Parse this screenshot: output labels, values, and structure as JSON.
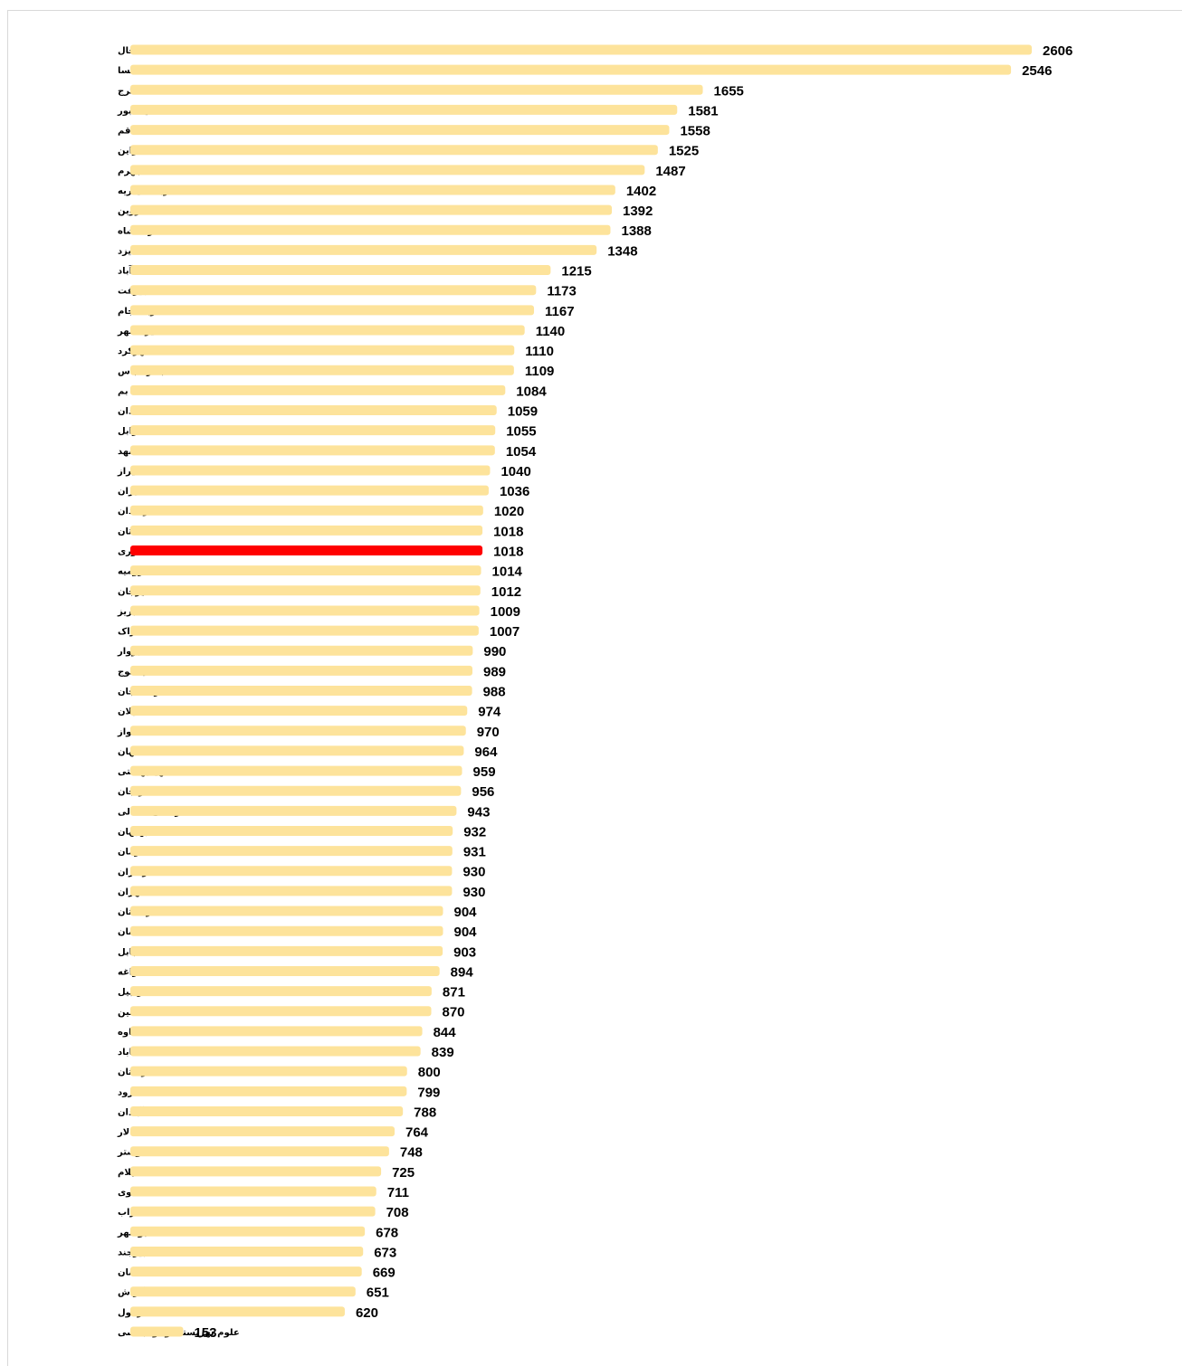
{
  "chart_data": {
    "type": "bar",
    "orientation": "horizontal",
    "categories": [
      "خلخال",
      "فسا",
      "کرج",
      "نیشابور",
      "قم",
      "اسفراین",
      "جهرم",
      "تربت حیدریه",
      "قزوین",
      "کرمانشاه",
      "یزد",
      "اسدآباد",
      "جیرفت",
      "تربت جام",
      "ایرانشهر",
      "شهرکرد",
      "بندر عباس",
      "بم",
      "همدان",
      "زابل",
      "مشهد",
      "شیراز",
      "ایران",
      "زاهدان",
      "گلستان",
      "کشوری",
      "ارومیه",
      "سیرجان",
      "تبریز",
      "اراک",
      "سبزوار",
      "یاسوج",
      "رفسنجان",
      "گیلان",
      "اهواز",
      "اصفهان",
      "شهیدبهشتی",
      "زنجان",
      "خراسان شمالی",
      "بهبهان",
      "کرمان",
      "مازندران",
      "تهران",
      "کردستان",
      "کاشان",
      "بابل",
      "مراغه",
      "اردبیل",
      "خمین",
      "ساوه",
      "گناباد",
      "لرستان",
      "شاهرود",
      "آبادان",
      "لار",
      "شوشتر",
      "ایلام",
      "خوی",
      "سراب",
      "بوشهر",
      "بیرجند",
      "سمنان",
      "گراش",
      "دزفول",
      "علوم بهزیستی و توانبخشی"
    ],
    "values": [
      2606,
      2546,
      1655,
      1581,
      1558,
      1525,
      1487,
      1402,
      1392,
      1388,
      1348,
      1215,
      1173,
      1167,
      1140,
      1110,
      1109,
      1084,
      1059,
      1055,
      1054,
      1040,
      1036,
      1020,
      1018,
      1018,
      1014,
      1012,
      1009,
      1007,
      990,
      989,
      988,
      974,
      970,
      964,
      959,
      956,
      943,
      932,
      931,
      930,
      930,
      904,
      904,
      903,
      894,
      871,
      870,
      844,
      839,
      800,
      799,
      788,
      764,
      748,
      725,
      711,
      708,
      678,
      673,
      669,
      651,
      620,
      153
    ],
    "colors": [
      "#fde39b",
      "#fde39b",
      "#fde39b",
      "#fde39b",
      "#fde39b",
      "#fde39b",
      "#fde39b",
      "#fde39b",
      "#fde39b",
      "#fde39b",
      "#fde39b",
      "#fde39b",
      "#fde39b",
      "#fde39b",
      "#fde39b",
      "#fde39b",
      "#fde39b",
      "#fde39b",
      "#fde39b",
      "#fde39b",
      "#fde39b",
      "#fde39b",
      "#fde39b",
      "#fde39b",
      "#fde39b",
      "#ff0000",
      "#fde39b",
      "#fde39b",
      "#fde39b",
      "#fde39b",
      "#fde39b",
      "#fde39b",
      "#fde39b",
      "#fde39b",
      "#fde39b",
      "#fde39b",
      "#fde39b",
      "#fde39b",
      "#fde39b",
      "#fde39b",
      "#fde39b",
      "#fde39b",
      "#fde39b",
      "#fde39b",
      "#fde39b",
      "#fde39b",
      "#fde39b",
      "#fde39b",
      "#fde39b",
      "#fde39b",
      "#fde39b",
      "#fde39b",
      "#fde39b",
      "#fde39b",
      "#fde39b",
      "#fde39b",
      "#fde39b",
      "#fde39b",
      "#fde39b",
      "#fde39b",
      "#fde39b",
      "#fde39b",
      "#fde39b",
      "#fde39b",
      "#fde39b"
    ]
  }
}
